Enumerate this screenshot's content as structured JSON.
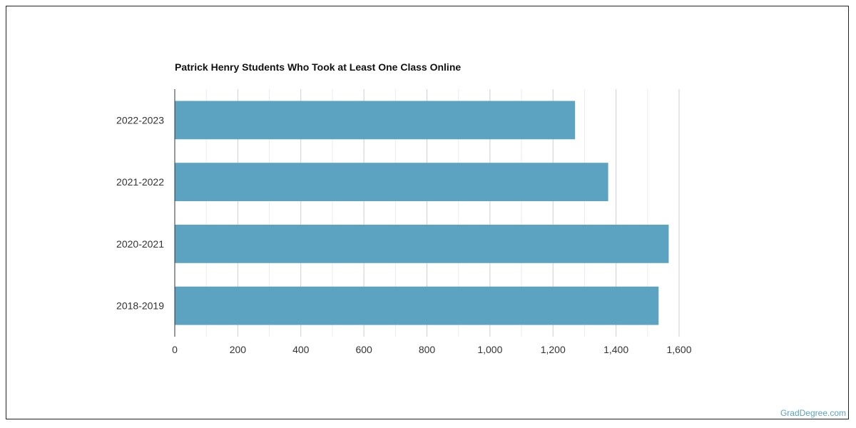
{
  "chart_data": {
    "type": "bar",
    "orientation": "horizontal",
    "title": "Patrick Henry Students Who Took at Least One Class Online",
    "categories": [
      "2022-2023",
      "2021-2022",
      "2020-2021",
      "2018-2019"
    ],
    "values": [
      1270,
      1375,
      1567,
      1535
    ],
    "xlim": [
      0,
      1600
    ],
    "xticks": [
      0,
      200,
      400,
      600,
      800,
      1000,
      1200,
      1400,
      1600
    ],
    "xtick_labels": [
      "0",
      "200",
      "400",
      "600",
      "800",
      "1,000",
      "1,200",
      "1,400",
      "1,600"
    ],
    "xlabel": "",
    "ylabel": "",
    "grid": true,
    "bar_color": "#5ba3c0"
  },
  "watermark": "GradDegree.com"
}
